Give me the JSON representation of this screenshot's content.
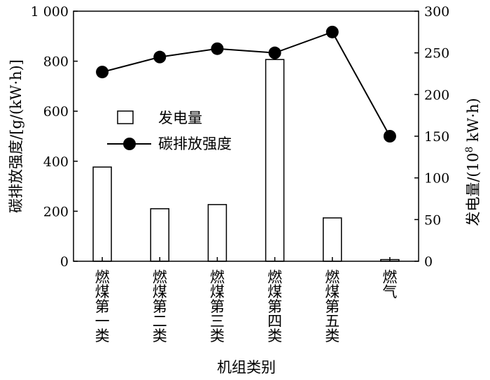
{
  "chart_data": {
    "type": "bar+line",
    "categories": [
      "燃煤第一类",
      "燃煤第二类",
      "燃煤第三类",
      "燃煤第四类",
      "燃煤第五类",
      "燃气"
    ],
    "series": [
      {
        "name": "发电量",
        "type": "bar",
        "axis": "right",
        "values": [
          113,
          63,
          68,
          242,
          52,
          2
        ]
      },
      {
        "name": "碳排放强度",
        "type": "line",
        "axis": "left",
        "marker": "filled-circle",
        "values": [
          227,
          245,
          255,
          250,
          275,
          150
        ]
      }
    ],
    "xlabel": "机组类别",
    "ylabel_left": "碳排放强度/[g/(kW·h)]",
    "ylabel_right_prefix": "发电量/(10",
    "ylabel_right_sup": "8",
    "ylabel_right_suffix": " kW·h)",
    "ylim_left": [
      0,
      1000
    ],
    "yticks_left": [
      "0",
      "200",
      "400",
      "600",
      "800",
      "1 000"
    ],
    "ylim_right": [
      0,
      300
    ],
    "yticks_right": [
      "0",
      "50",
      "100",
      "150",
      "200",
      "250",
      "300"
    ],
    "grid": false,
    "legend_position": "center-left",
    "colors": {
      "bar_fill": "#ffffff",
      "bar_stroke": "#000000",
      "line": "#000000",
      "marker": "#000000"
    }
  }
}
